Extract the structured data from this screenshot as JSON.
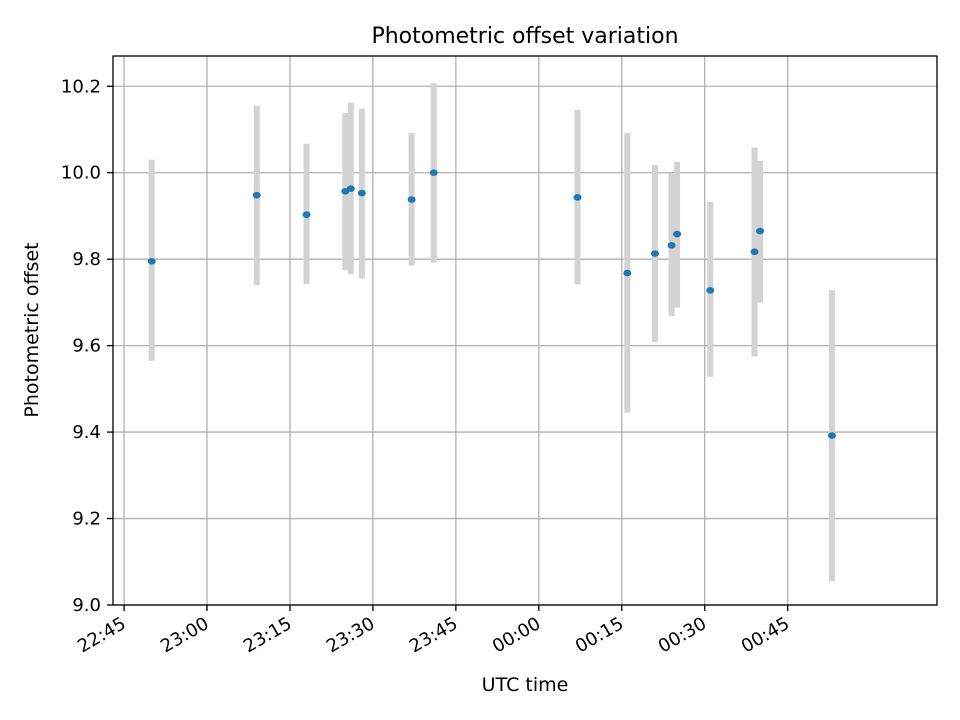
{
  "chart_data": {
    "type": "scatter",
    "title": "Photometric offset variation",
    "xlabel": "UTC time",
    "ylabel": "Photometric offset",
    "grid": true,
    "xlim": [
      "22:43",
      "01:12"
    ],
    "ylim": [
      9.0,
      10.27
    ],
    "x_ticks": [
      "22:45",
      "23:00",
      "23:15",
      "23:30",
      "23:45",
      "00:00",
      "00:15",
      "00:30",
      "00:45"
    ],
    "y_ticks": [
      "9.0",
      "9.2",
      "9.4",
      "9.6",
      "9.8",
      "10.0",
      "10.2"
    ],
    "colors": {
      "point": "#1f77b4",
      "errorbar": "#d3d3d3",
      "grid": "#b0b0b0"
    },
    "points": [
      {
        "x": "22:50",
        "y": 9.795,
        "yerr_low": 9.565,
        "yerr_high": 10.03
      },
      {
        "x": "23:09",
        "y": 9.948,
        "yerr_low": 9.74,
        "yerr_high": 10.155
      },
      {
        "x": "23:18",
        "y": 9.903,
        "yerr_low": 9.742,
        "yerr_high": 10.067
      },
      {
        "x": "23:25",
        "y": 9.957,
        "yerr_low": 9.775,
        "yerr_high": 10.138
      },
      {
        "x": "23:26",
        "y": 9.963,
        "yerr_low": 9.765,
        "yerr_high": 10.162
      },
      {
        "x": "23:28",
        "y": 9.953,
        "yerr_low": 9.755,
        "yerr_high": 10.148
      },
      {
        "x": "23:37",
        "y": 9.938,
        "yerr_low": 9.785,
        "yerr_high": 10.092
      },
      {
        "x": "23:41",
        "y": 10.0,
        "yerr_low": 9.792,
        "yerr_high": 10.207
      },
      {
        "x": "00:07",
        "y": 9.943,
        "yerr_low": 9.742,
        "yerr_high": 10.145
      },
      {
        "x": "00:16",
        "y": 9.768,
        "yerr_low": 9.445,
        "yerr_high": 10.092
      },
      {
        "x": "00:21",
        "y": 9.813,
        "yerr_low": 9.608,
        "yerr_high": 10.018
      },
      {
        "x": "00:24",
        "y": 9.832,
        "yerr_low": 9.668,
        "yerr_high": 9.998
      },
      {
        "x": "00:25",
        "y": 9.858,
        "yerr_low": 9.688,
        "yerr_high": 10.025
      },
      {
        "x": "00:31",
        "y": 9.728,
        "yerr_low": 9.528,
        "yerr_high": 9.932
      },
      {
        "x": "00:39",
        "y": 9.817,
        "yerr_low": 9.575,
        "yerr_high": 10.058
      },
      {
        "x": "00:40",
        "y": 9.865,
        "yerr_low": 9.7,
        "yerr_high": 10.028
      },
      {
        "x": "00:53",
        "y": 9.392,
        "yerr_low": 9.055,
        "yerr_high": 9.728
      }
    ]
  }
}
